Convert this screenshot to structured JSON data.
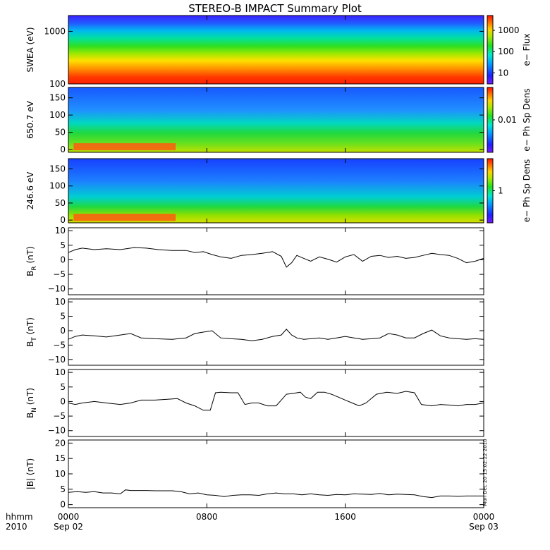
{
  "title": "STEREO-B IMPACT Summary Plot",
  "x_axis": {
    "corner_labels": [
      "hhmm",
      "2010"
    ],
    "ticks": [
      {
        "time": "0000",
        "date": "Sep 02",
        "hour": 0
      },
      {
        "time": "0800",
        "date": "",
        "hour": 8
      },
      {
        "time": "1600",
        "date": "",
        "hour": 16
      },
      {
        "time": "0000",
        "date": "Sep 03",
        "hour": 24
      }
    ],
    "range_hours": [
      0,
      24
    ]
  },
  "side_stamp": "Mon Dec 20 15:02:22 2010",
  "chart_data": [
    {
      "type": "heatmap",
      "ylabel": "SWEA (eV)",
      "yscale": "log",
      "ylim": [
        100,
        2000
      ],
      "yticks": [
        {
          "value": 100,
          "label": "100"
        },
        {
          "value": 1000,
          "label": "1000"
        }
      ],
      "colorbar": {
        "label": "e− Flux",
        "scale": "log",
        "range": [
          3,
          5000
        ],
        "ticks": [
          {
            "value": 10,
            "label": "10"
          },
          {
            "value": 100,
            "label": "100"
          },
          {
            "value": 1000,
            "label": "1000"
          }
        ]
      }
    },
    {
      "type": "heatmap",
      "ylabel": "650.7 eV",
      "ylim": [
        -8,
        180
      ],
      "yticks": [
        {
          "value": 0,
          "label": "0"
        },
        {
          "value": 50,
          "label": "50"
        },
        {
          "value": 100,
          "label": "100"
        },
        {
          "value": 150,
          "label": "150"
        }
      ],
      "colorbar": {
        "label": "e− Ph Sp Dens",
        "scale": "log",
        "range": [
          0.002,
          0.05
        ],
        "ticks": [
          {
            "value": 0.01,
            "label": "0.01"
          }
        ]
      }
    },
    {
      "type": "heatmap",
      "ylabel": "246.6 eV",
      "ylim": [
        -8,
        180
      ],
      "yticks": [
        {
          "value": 0,
          "label": "0"
        },
        {
          "value": 50,
          "label": "50"
        },
        {
          "value": 100,
          "label": "100"
        },
        {
          "value": 150,
          "label": "150"
        }
      ],
      "colorbar": {
        "label": "e− Ph Sp Dens",
        "scale": "log",
        "range": [
          0.2,
          5
        ],
        "ticks": [
          {
            "value": 1,
            "label": "1"
          }
        ]
      }
    },
    {
      "type": "line",
      "ylabel": {
        "main": "B",
        "sub": "R",
        "unit": " (nT)"
      },
      "ylim": [
        -12,
        11
      ],
      "yticks": [
        {
          "value": -10,
          "label": "−10"
        },
        {
          "value": -5,
          "label": "−5"
        },
        {
          "value": 0,
          "label": "0"
        },
        {
          "value": 5,
          "label": "5"
        },
        {
          "value": 10,
          "label": "10"
        }
      ],
      "x": [
        0,
        0.4,
        0.8,
        1.5,
        2.2,
        3,
        3.8,
        4.5,
        5.2,
        6,
        6.8,
        7.3,
        7.8,
        8.3,
        8.8,
        9.4,
        10,
        10.6,
        11.2,
        11.8,
        12.3,
        12.6,
        12.9,
        13.2,
        13.6,
        14,
        14.5,
        15,
        15.5,
        16,
        16.5,
        17,
        17.5,
        18,
        18.5,
        19,
        19.5,
        20,
        20.5,
        21,
        21.5,
        22,
        22.5,
        23,
        23.5,
        24
      ],
      "y": [
        2.5,
        3.5,
        4,
        3.5,
        3.8,
        3.5,
        4.2,
        4,
        3.5,
        3.2,
        3.2,
        2.5,
        2.8,
        1.8,
        1,
        0.5,
        1.5,
        1.8,
        2.2,
        2.8,
        1.2,
        -2.5,
        -1,
        1.5,
        0.5,
        -0.5,
        1,
        0.2,
        -0.8,
        1,
        1.8,
        -0.5,
        1.2,
        1.5,
        0.8,
        1.2,
        0.5,
        0.8,
        1.5,
        2.2,
        1.8,
        1.5,
        0.5,
        -1,
        -0.5,
        0.5
      ]
    },
    {
      "type": "line",
      "ylabel": {
        "main": "B",
        "sub": "T",
        "unit": " (nT)"
      },
      "ylim": [
        -12,
        11
      ],
      "yticks": [
        {
          "value": -10,
          "label": "−10"
        },
        {
          "value": -5,
          "label": "−5"
        },
        {
          "value": 0,
          "label": "0"
        },
        {
          "value": 5,
          "label": "5"
        },
        {
          "value": 10,
          "label": "10"
        }
      ],
      "x": [
        0,
        0.4,
        0.8,
        1.5,
        2.2,
        3,
        3.6,
        4.2,
        5,
        6,
        6.8,
        7.3,
        7.8,
        8.3,
        8.8,
        9.4,
        10,
        10.6,
        11.2,
        11.8,
        12.3,
        12.6,
        12.9,
        13.2,
        13.6,
        14,
        14.5,
        15,
        15.5,
        16,
        16.5,
        17,
        17.5,
        18,
        18.5,
        19,
        19.5,
        20,
        20.5,
        21,
        21.5,
        22,
        22.5,
        23,
        23.5,
        24
      ],
      "y": [
        -3,
        -2,
        -1.5,
        -1.8,
        -2.2,
        -1.5,
        -1,
        -2.5,
        -2.8,
        -3,
        -2.5,
        -1,
        -0.5,
        0,
        -2.5,
        -2.8,
        -3,
        -3.5,
        -3,
        -2,
        -1.5,
        0.5,
        -1.5,
        -2.5,
        -3,
        -2.8,
        -2.5,
        -3,
        -2.5,
        -2,
        -2.5,
        -3,
        -2.8,
        -2.5,
        -1,
        -1.5,
        -2.5,
        -2.5,
        -1,
        0.2,
        -1.8,
        -2.5,
        -2.8,
        -3,
        -2.8,
        -3
      ]
    },
    {
      "type": "line",
      "ylabel": {
        "main": "B",
        "sub": "N",
        "unit": " (nT)"
      },
      "ylim": [
        -12,
        11
      ],
      "yticks": [
        {
          "value": -10,
          "label": "−10"
        },
        {
          "value": -5,
          "label": "−5"
        },
        {
          "value": 0,
          "label": "0"
        },
        {
          "value": 5,
          "label": "5"
        },
        {
          "value": 10,
          "label": "10"
        }
      ],
      "x": [
        0,
        0.4,
        0.8,
        1.5,
        2.2,
        3,
        3.6,
        4.2,
        5,
        5.8,
        6.3,
        6.8,
        7.3,
        7.8,
        8.2,
        8.5,
        8.8,
        9.4,
        9.8,
        10.2,
        10.6,
        11,
        11.5,
        12,
        12.3,
        12.6,
        13,
        13.4,
        13.7,
        14,
        14.4,
        14.8,
        15.2,
        15.6,
        16,
        16.4,
        16.8,
        17.2,
        17.8,
        18.4,
        19,
        19.5,
        20,
        20.4,
        21,
        21.5,
        22,
        22.5,
        23,
        23.5,
        24
      ],
      "y": [
        -0.5,
        -1,
        -0.5,
        0,
        -0.5,
        -1,
        -0.5,
        0.5,
        0.5,
        0.8,
        1,
        -0.5,
        -1.5,
        -3,
        -3,
        3,
        3.2,
        3,
        3,
        -1,
        -0.5,
        -0.5,
        -1.5,
        -1.5,
        0.5,
        2.5,
        2.8,
        3.2,
        1.5,
        1,
        3.2,
        3.2,
        2.5,
        1.5,
        0.5,
        -0.5,
        -1.5,
        -0.5,
        2.5,
        3.2,
        2.8,
        3.5,
        3,
        -1,
        -1.5,
        -1,
        -1.2,
        -1.5,
        -1,
        -1,
        -0.5
      ]
    },
    {
      "type": "line",
      "ylabel": {
        "main": "|B|",
        "sub": "",
        "unit": " (nT)"
      },
      "ylim": [
        -1,
        21
      ],
      "yticks": [
        {
          "value": 0,
          "label": "0"
        },
        {
          "value": 5,
          "label": "5"
        },
        {
          "value": 10,
          "label": "10"
        },
        {
          "value": 15,
          "label": "15"
        },
        {
          "value": 20,
          "label": "20"
        }
      ],
      "x": [
        0,
        0.5,
        1,
        1.5,
        2,
        2.5,
        3,
        3.3,
        3.6,
        4,
        4.5,
        5,
        5.5,
        6,
        6.5,
        7,
        7.5,
        8,
        8.5,
        9,
        9.5,
        10,
        10.5,
        11,
        11.5,
        12,
        12.5,
        13,
        13.5,
        14,
        14.5,
        15,
        15.5,
        16,
        16.5,
        17,
        17.5,
        18,
        18.5,
        19,
        19.5,
        20,
        20.5,
        21,
        21.5,
        22,
        22.5,
        23,
        23.5,
        24
      ],
      "y": [
        4,
        4.2,
        4,
        4.2,
        3.8,
        3.8,
        3.5,
        4.8,
        4.6,
        4.6,
        4.6,
        4.5,
        4.5,
        4.5,
        4.2,
        3.5,
        3.8,
        3.2,
        3,
        2.6,
        3,
        3.2,
        3.2,
        3,
        3.5,
        3.8,
        3.5,
        3.5,
        3.2,
        3.5,
        3.2,
        3,
        3.3,
        3.2,
        3.5,
        3.4,
        3.3,
        3.6,
        3.2,
        3.4,
        3.3,
        3.2,
        2.6,
        2.3,
        2.8,
        2.8,
        2.7,
        2.8,
        2.8,
        2.8
      ]
    }
  ]
}
